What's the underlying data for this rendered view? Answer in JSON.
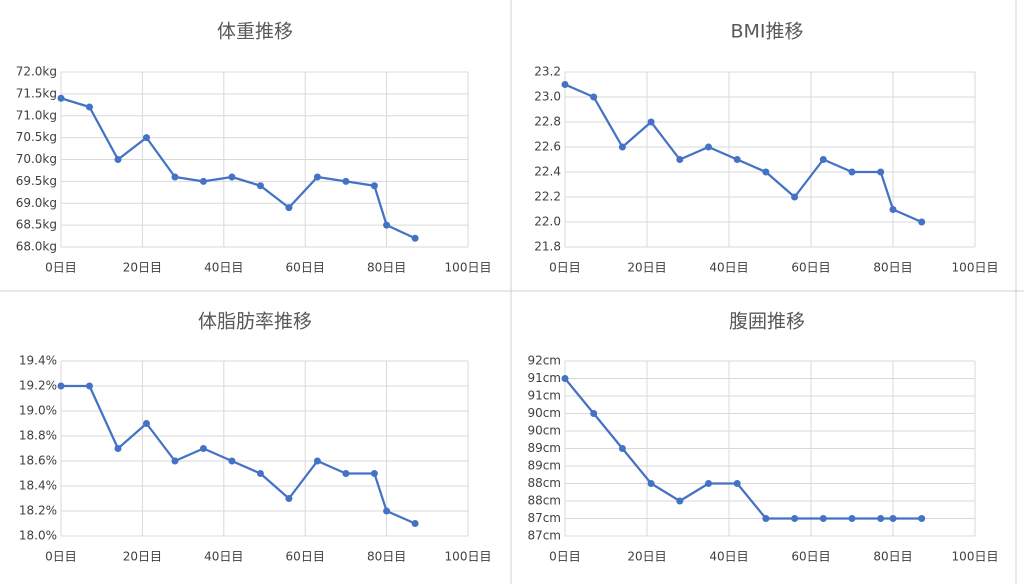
{
  "chart_data": [
    {
      "type": "line",
      "title": "体重推移",
      "x": [
        0,
        7,
        14,
        21,
        28,
        35,
        42,
        49,
        56,
        63,
        70,
        77,
        80,
        87
      ],
      "series": [
        {
          "color": "#4472c4",
          "values": [
            71.4,
            71.2,
            70.0,
            70.5,
            69.6,
            69.5,
            69.6,
            69.4,
            68.9,
            69.6,
            69.5,
            69.4,
            68.5,
            68.2
          ]
        }
      ],
      "xlim": [
        0,
        100
      ],
      "xticks": [
        {
          "value": 0,
          "label": "0日目"
        },
        {
          "value": 20,
          "label": "20日目"
        },
        {
          "value": 40,
          "label": "40日目"
        },
        {
          "value": 60,
          "label": "60日目"
        },
        {
          "value": 80,
          "label": "80日目"
        },
        {
          "value": 100,
          "label": "100日目"
        }
      ],
      "ylim": [
        68,
        72
      ],
      "yticks": [
        {
          "value": 68,
          "label": "68.0kg"
        },
        {
          "value": 68.5,
          "label": "68.5kg"
        },
        {
          "value": 69,
          "label": "69.0kg"
        },
        {
          "value": 69.5,
          "label": "69.5kg"
        },
        {
          "value": 70,
          "label": "70.0kg"
        },
        {
          "value": 70.5,
          "label": "70.5kg"
        },
        {
          "value": 71,
          "label": "71.0kg"
        },
        {
          "value": 71.5,
          "label": "71.5kg"
        },
        {
          "value": 72,
          "label": "72.0kg"
        }
      ],
      "grid": true
    },
    {
      "type": "line",
      "title": "BMI推移",
      "x": [
        0,
        7,
        14,
        21,
        28,
        35,
        42,
        49,
        56,
        63,
        70,
        77,
        80,
        87
      ],
      "series": [
        {
          "color": "#4472c4",
          "values": [
            23.1,
            23.0,
            22.6,
            22.8,
            22.5,
            22.6,
            22.5,
            22.4,
            22.2,
            22.5,
            22.4,
            22.4,
            22.1,
            22.0
          ]
        }
      ],
      "xlim": [
        0,
        100
      ],
      "xticks": [
        {
          "value": 0,
          "label": "0日目"
        },
        {
          "value": 20,
          "label": "20日目"
        },
        {
          "value": 40,
          "label": "40日目"
        },
        {
          "value": 60,
          "label": "60日目"
        },
        {
          "value": 80,
          "label": "80日目"
        },
        {
          "value": 100,
          "label": "100日目"
        }
      ],
      "ylim": [
        21.8,
        23.2
      ],
      "yticks": [
        21.8,
        {
          "value": 22,
          "label": "22.0"
        },
        22.2,
        22.4,
        22.6,
        22.8,
        {
          "value": 23,
          "label": "23.0"
        },
        23.2
      ],
      "grid": true
    },
    {
      "type": "line",
      "title": "体脂肪率推移",
      "x": [
        0,
        7,
        14,
        21,
        28,
        35,
        42,
        49,
        56,
        63,
        70,
        77,
        80,
        87
      ],
      "series": [
        {
          "color": "#4472c4",
          "values": [
            19.2,
            19.2,
            18.7,
            18.9,
            18.6,
            18.7,
            18.6,
            18.5,
            18.3,
            18.6,
            18.5,
            18.5,
            18.2,
            18.1
          ]
        }
      ],
      "xlim": [
        0,
        100
      ],
      "xticks": [
        {
          "value": 0,
          "label": "0日目"
        },
        {
          "value": 20,
          "label": "20日目"
        },
        {
          "value": 40,
          "label": "40日目"
        },
        {
          "value": 60,
          "label": "60日目"
        },
        {
          "value": 80,
          "label": "80日目"
        },
        {
          "value": 100,
          "label": "100日目"
        }
      ],
      "ylim": [
        18.0,
        19.4
      ],
      "yticks": [
        {
          "value": 18.0,
          "label": "18.0%"
        },
        {
          "value": 18.2,
          "label": "18.2%"
        },
        {
          "value": 18.4,
          "label": "18.4%"
        },
        {
          "value": 18.6,
          "label": "18.6%"
        },
        {
          "value": 18.8,
          "label": "18.8%"
        },
        {
          "value": 19.0,
          "label": "19.0%"
        },
        {
          "value": 19.2,
          "label": "19.2%"
        },
        {
          "value": 19.4,
          "label": "19.4%"
        }
      ],
      "grid": true
    },
    {
      "type": "line",
      "title": "腹囲推移",
      "x": [
        0,
        7,
        14,
        21,
        28,
        35,
        42,
        49,
        56,
        63,
        70,
        77,
        80,
        87
      ],
      "series": [
        {
          "color": "#4472c4",
          "values": [
            91,
            90,
            89,
            88,
            87.5,
            88,
            88,
            87,
            87,
            87,
            87,
            87,
            87,
            87
          ]
        }
      ],
      "xlim": [
        0,
        100
      ],
      "xticks": [
        {
          "value": 0,
          "label": "0日目"
        },
        {
          "value": 20,
          "label": "20日目"
        },
        {
          "value": 40,
          "label": "40日目"
        },
        {
          "value": 60,
          "label": "60日目"
        },
        {
          "value": 80,
          "label": "80日目"
        },
        {
          "value": 100,
          "label": "100日目"
        }
      ],
      "ylim": [
        86.5,
        91.5
      ],
      "yticks": [
        {
          "value": 86.5,
          "label": "87cm"
        },
        {
          "value": 87,
          "label": "87cm"
        },
        {
          "value": 87.5,
          "label": "88cm"
        },
        {
          "value": 88,
          "label": "88cm"
        },
        {
          "value": 88.5,
          "label": "89cm"
        },
        {
          "value": 89,
          "label": "89cm"
        },
        {
          "value": 89.5,
          "label": "90cm"
        },
        {
          "value": 90,
          "label": "90cm"
        },
        {
          "value": 90.5,
          "label": "91cm"
        },
        {
          "value": 91,
          "label": "91cm"
        },
        {
          "value": 91.5,
          "label": "92cm"
        }
      ],
      "grid": true
    }
  ]
}
